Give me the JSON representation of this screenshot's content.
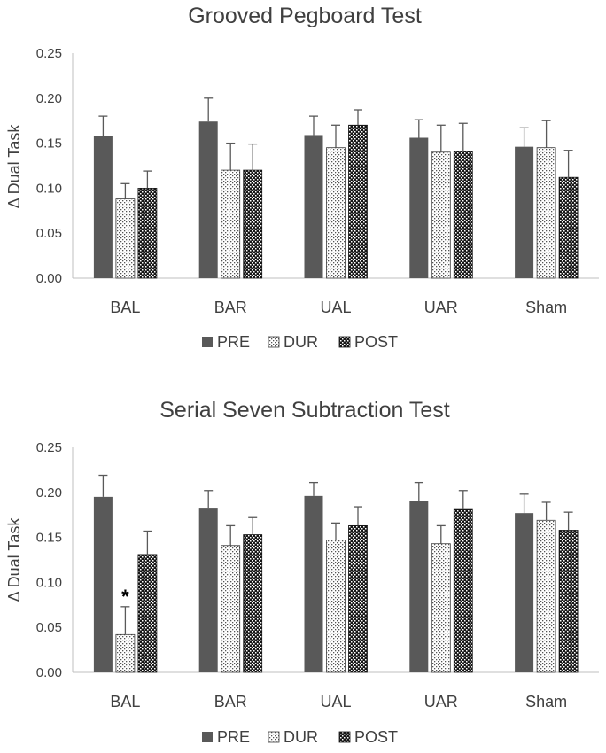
{
  "chart_data": [
    {
      "type": "bar",
      "title": "Grooved Pegboard Test",
      "xlabel": "",
      "ylabel": "Δ Dual Task",
      "ylim": [
        0,
        0.25
      ],
      "yticks": [
        "0.00",
        "0.05",
        "0.10",
        "0.15",
        "0.20",
        "0.25"
      ],
      "categories": [
        "BAL",
        "BAR",
        "UAL",
        "UAR",
        "Sham"
      ],
      "series": [
        {
          "name": "PRE",
          "values": [
            0.158,
            0.174,
            0.159,
            0.156,
            0.146
          ],
          "errors": [
            0.022,
            0.026,
            0.021,
            0.02,
            0.021
          ]
        },
        {
          "name": "DUR",
          "values": [
            0.088,
            0.12,
            0.145,
            0.14,
            0.145
          ],
          "errors": [
            0.017,
            0.03,
            0.025,
            0.03,
            0.03
          ]
        },
        {
          "name": "POST",
          "values": [
            0.1,
            0.12,
            0.17,
            0.141,
            0.112
          ],
          "errors": [
            0.019,
            0.029,
            0.017,
            0.031,
            0.03
          ]
        }
      ],
      "annotations": [],
      "legend": [
        "PRE",
        "DUR",
        "POST"
      ]
    },
    {
      "type": "bar",
      "title": "Serial Seven Subtraction Test",
      "xlabel": "",
      "ylabel": "Δ Dual Task",
      "ylim": [
        0,
        0.25
      ],
      "yticks": [
        "0.00",
        "0.05",
        "0.10",
        "0.15",
        "0.20",
        "0.25"
      ],
      "categories": [
        "BAL",
        "BAR",
        "UAL",
        "UAR",
        "Sham"
      ],
      "series": [
        {
          "name": "PRE",
          "values": [
            0.195,
            0.182,
            0.196,
            0.19,
            0.177
          ],
          "errors": [
            0.024,
            0.02,
            0.015,
            0.021,
            0.021
          ]
        },
        {
          "name": "DUR",
          "values": [
            0.042,
            0.141,
            0.147,
            0.143,
            0.169
          ],
          "errors": [
            0.031,
            0.022,
            0.019,
            0.02,
            0.02
          ]
        },
        {
          "name": "POST",
          "values": [
            0.131,
            0.153,
            0.163,
            0.181,
            0.158
          ],
          "errors": [
            0.026,
            0.019,
            0.021,
            0.021,
            0.02
          ]
        }
      ],
      "annotations": [
        {
          "category": "BAL",
          "series": "DUR",
          "text": "*"
        }
      ],
      "legend": [
        "PRE",
        "DUR",
        "POST"
      ]
    }
  ]
}
